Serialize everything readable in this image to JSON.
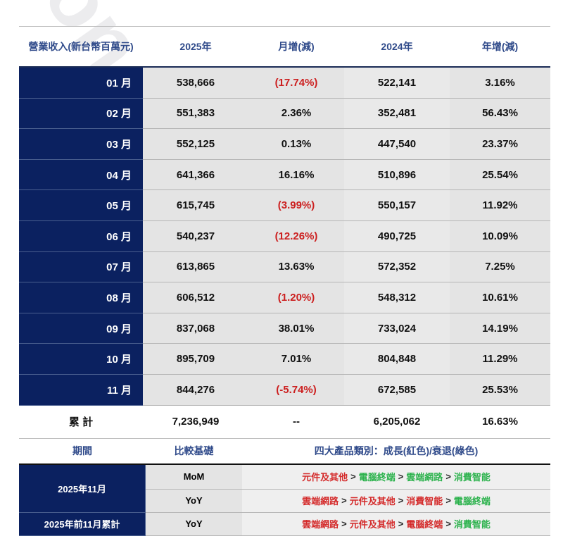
{
  "watermark": "on",
  "revenue_table": {
    "headers": [
      "營業收入(新台幣百萬元)",
      "2025年",
      "月增(減)",
      "2024年",
      "年增(減)"
    ],
    "rows": [
      {
        "month": "01 月",
        "y2025": "538,666",
        "mom": "(17.74%)",
        "mom_negative": true,
        "y2024": "522,141",
        "yoy": "3.16%"
      },
      {
        "month": "02 月",
        "y2025": "551,383",
        "mom": "2.36%",
        "mom_negative": false,
        "y2024": "352,481",
        "yoy": "56.43%"
      },
      {
        "month": "03 月",
        "y2025": "552,125",
        "mom": "0.13%",
        "mom_negative": false,
        "y2024": "447,540",
        "yoy": "23.37%"
      },
      {
        "month": "04 月",
        "y2025": "641,366",
        "mom": "16.16%",
        "mom_negative": false,
        "y2024": "510,896",
        "yoy": "25.54%"
      },
      {
        "month": "05 月",
        "y2025": "615,745",
        "mom": "(3.99%)",
        "mom_negative": true,
        "y2024": "550,157",
        "yoy": "11.92%"
      },
      {
        "month": "06 月",
        "y2025": "540,237",
        "mom": "(12.26%)",
        "mom_negative": true,
        "y2024": "490,725",
        "yoy": "10.09%"
      },
      {
        "month": "07 月",
        "y2025": "613,865",
        "mom": "13.63%",
        "mom_negative": false,
        "y2024": "572,352",
        "yoy": "7.25%"
      },
      {
        "month": "08 月",
        "y2025": "606,512",
        "mom": "(1.20%)",
        "mom_negative": true,
        "y2024": "548,312",
        "yoy": "10.61%"
      },
      {
        "month": "09 月",
        "y2025": "837,068",
        "mom": "38.01%",
        "mom_negative": false,
        "y2024": "733,024",
        "yoy": "14.19%"
      },
      {
        "month": "10 月",
        "y2025": "895,709",
        "mom": "7.01%",
        "mom_negative": false,
        "y2024": "804,848",
        "yoy": "11.29%"
      },
      {
        "month": "11 月",
        "y2025": "844,276",
        "mom": "(-5.74%)",
        "mom_negative": true,
        "y2024": "672,585",
        "yoy": "25.53%"
      }
    ],
    "total": {
      "label": "累 計",
      "y2025": "7,236,949",
      "mom": "--",
      "y2024": "6,205,062",
      "yoy": "16.63%"
    }
  },
  "category_table": {
    "headers": [
      "期間",
      "比較基礎",
      "四大產品類別：成長(紅色)/衰退(綠色)"
    ],
    "rows": [
      {
        "period": "2025年11月",
        "basis": "MoM",
        "ranking": [
          {
            "name": "元件及其他",
            "trend": "growth"
          },
          {
            "name": "電腦終端",
            "trend": "decline"
          },
          {
            "name": "雲端網路",
            "trend": "decline"
          },
          {
            "name": "消費智能",
            "trend": "decline"
          }
        ]
      },
      {
        "period": "2025年11月",
        "basis": "YoY",
        "ranking": [
          {
            "name": "雲端網路",
            "trend": "growth"
          },
          {
            "name": "元件及其他",
            "trend": "growth"
          },
          {
            "name": "消費智能",
            "trend": "growth"
          },
          {
            "name": "電腦終端",
            "trend": "decline"
          }
        ]
      },
      {
        "period": "2025年前11月累計",
        "basis": "YoY",
        "ranking": [
          {
            "name": "雲端網路",
            "trend": "growth"
          },
          {
            "name": "元件及其他",
            "trend": "growth"
          },
          {
            "name": "電腦終端",
            "trend": "growth"
          },
          {
            "name": "消費智能",
            "trend": "decline"
          }
        ]
      }
    ],
    "separator": ">"
  },
  "colors": {
    "navy": "#0b2160",
    "header_text": "#2f4a8a",
    "growth_red": "#d42a2a",
    "decline_green": "#2bb24c",
    "negative_red": "#cc1f1f"
  }
}
